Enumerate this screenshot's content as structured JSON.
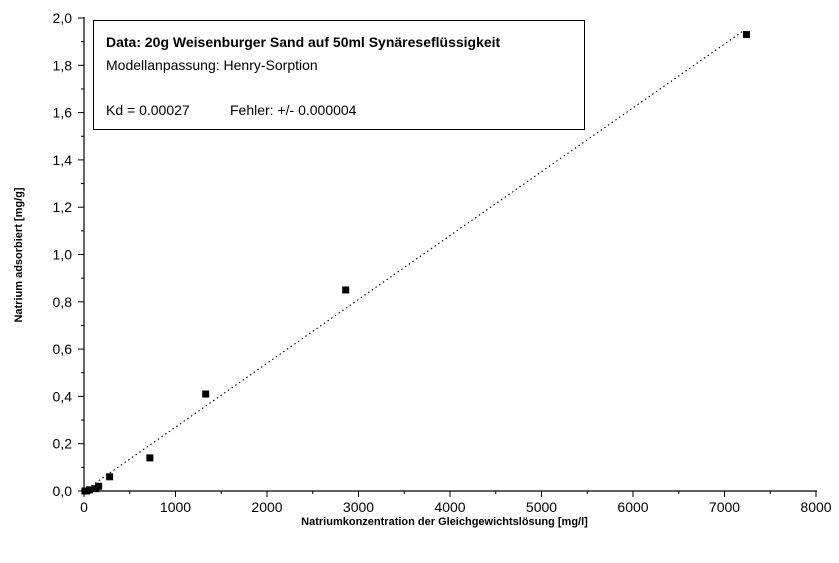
{
  "chart_data": {
    "type": "scatter",
    "xlabel": "Natriumkonzentration der Gleichgewichtslösung [mg/l]",
    "ylabel": "Natrium adsorbiert [mg/g]",
    "xlim": [
      0,
      8000
    ],
    "ylim": [
      0,
      2.0
    ],
    "x_ticks": [
      "0",
      "1000",
      "2000",
      "3000",
      "4000",
      "5000",
      "6000",
      "7000",
      "8000"
    ],
    "y_ticks": [
      "0,0",
      "0,2",
      "0,4",
      "0,6",
      "0,8",
      "1,0",
      "1,2",
      "1,4",
      "1,6",
      "1,8",
      "2,0"
    ],
    "series": [
      {
        "x": [
          10,
          30,
          60,
          130,
          160,
          280,
          720,
          1330,
          2860,
          7240
        ],
        "y": [
          0.0,
          0.0,
          0.005,
          0.01,
          0.02,
          0.06,
          0.14,
          0.41,
          0.85,
          1.93
        ]
      }
    ],
    "fit": {
      "type": "linear",
      "slope": 0.00027,
      "x_range": [
        0,
        7200
      ],
      "style": "dotted"
    },
    "grid": false,
    "legend": {
      "position": "top-left",
      "title": "Data: 20g Weisenburger Sand auf 50ml Synäreseflüssigkeit",
      "model": "Modellanpassung: Henry-Sorption",
      "kd": "Kd = 0.00027",
      "error": "Fehler: +/- 0.000004"
    }
  }
}
